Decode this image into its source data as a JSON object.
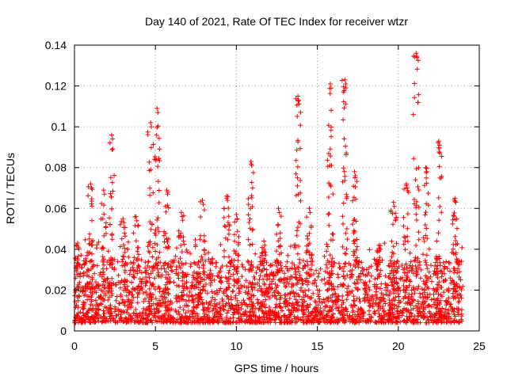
{
  "chart_data": {
    "type": "scatter",
    "title": "Day 140 of 2021, Rate Of TEC Index for receiver wtzr",
    "xlabel": "GPS time / hours",
    "ylabel": "ROTI / TECUs",
    "xlim": [
      0,
      25
    ],
    "ylim": [
      0,
      0.14
    ],
    "xticks": [
      "0",
      "5",
      "10",
      "15",
      "20",
      "25"
    ],
    "yticks": [
      "0",
      "0.02",
      "0.04",
      "0.06",
      "0.08",
      "0.1",
      "0.12",
      "0.14"
    ],
    "grid": true,
    "marker": "+",
    "series": [
      {
        "name": "ROTI",
        "color": "#ff0000",
        "note": "dense scatter of ROTI samples; base band ~0.005-0.045 TECU throughout the day",
        "base_x_range": [
          0,
          24
        ],
        "base_y_range": [
          0.004,
          0.045
        ],
        "peaks": [
          {
            "x": 0.2,
            "y": 0.043
          },
          {
            "x": 1.0,
            "y": 0.072
          },
          {
            "x": 1.8,
            "y": 0.069
          },
          {
            "x": 2.3,
            "y": 0.096
          },
          {
            "x": 3.0,
            "y": 0.055
          },
          {
            "x": 3.8,
            "y": 0.056
          },
          {
            "x": 4.7,
            "y": 0.102
          },
          {
            "x": 5.1,
            "y": 0.109
          },
          {
            "x": 5.7,
            "y": 0.069
          },
          {
            "x": 6.6,
            "y": 0.058
          },
          {
            "x": 7.9,
            "y": 0.064
          },
          {
            "x": 9.4,
            "y": 0.066
          },
          {
            "x": 10.0,
            "y": 0.057
          },
          {
            "x": 10.9,
            "y": 0.083
          },
          {
            "x": 11.7,
            "y": 0.044
          },
          {
            "x": 12.6,
            "y": 0.06
          },
          {
            "x": 13.8,
            "y": 0.115
          },
          {
            "x": 14.5,
            "y": 0.06
          },
          {
            "x": 15.8,
            "y": 0.121
          },
          {
            "x": 16.7,
            "y": 0.123
          },
          {
            "x": 17.3,
            "y": 0.078
          },
          {
            "x": 18.8,
            "y": 0.042
          },
          {
            "x": 19.7,
            "y": 0.063
          },
          {
            "x": 20.5,
            "y": 0.072
          },
          {
            "x": 21.1,
            "y": 0.136
          },
          {
            "x": 21.7,
            "y": 0.08
          },
          {
            "x": 22.5,
            "y": 0.093
          },
          {
            "x": 23.5,
            "y": 0.065
          }
        ]
      }
    ]
  }
}
